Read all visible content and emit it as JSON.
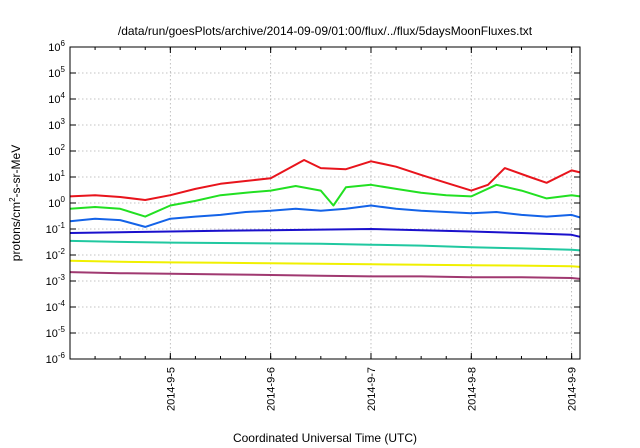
{
  "chart_data": {
    "type": "line",
    "title": "/data/run/goesPlots/archive/2014-09-09/01:00/flux/../flux/5daysMoonFluxes.txt",
    "xlabel": "Coordinated Universal Time (UTC)",
    "ylabel_prefix": "protons/cm",
    "ylabel_sup": "2",
    "ylabel_suffix": "-s-sr-MeV",
    "y_scale": "log",
    "xlim": [
      "2014-09-04T00:00",
      "2014-09-09T02:00"
    ],
    "ylim": [
      1e-06,
      1000000.0
    ],
    "grid": true,
    "legend": "none",
    "x_ticks": [
      "2014-9-5",
      "2014-9-6",
      "2014-9-7",
      "2014-9-8",
      "2014-9-9"
    ],
    "y_ticks": [
      {
        "base": "10",
        "exp": "6"
      },
      {
        "base": "10",
        "exp": "5"
      },
      {
        "base": "10",
        "exp": "4"
      },
      {
        "base": "10",
        "exp": "3"
      },
      {
        "base": "10",
        "exp": "2"
      },
      {
        "base": "10",
        "exp": "1"
      },
      {
        "base": "10",
        "exp": "0"
      },
      {
        "base": "10",
        "exp": "-1"
      },
      {
        "base": "10",
        "exp": "-2"
      },
      {
        "base": "10",
        "exp": "-3"
      },
      {
        "base": "10",
        "exp": "-4"
      },
      {
        "base": "10",
        "exp": "-5"
      },
      {
        "base": "10",
        "exp": "-6"
      }
    ],
    "series": [
      {
        "color": "#e8141c",
        "x": [
          "2014-09-04T00:00",
          "2014-09-04T06:00",
          "2014-09-04T12:00",
          "2014-09-04T18:00",
          "2014-09-05T00:00",
          "2014-09-05T06:00",
          "2014-09-05T12:00",
          "2014-09-05T18:00",
          "2014-09-06T00:00",
          "2014-09-06T06:00",
          "2014-09-06T08:00",
          "2014-09-06T12:00",
          "2014-09-06T18:00",
          "2014-09-07T00:00",
          "2014-09-07T06:00",
          "2014-09-07T12:00",
          "2014-09-07T18:00",
          "2014-09-08T00:00",
          "2014-09-08T04:00",
          "2014-09-08T08:00",
          "2014-09-08T14:00",
          "2014-09-08T18:00",
          "2014-09-09T00:00",
          "2014-09-09T02:00"
        ],
        "y": [
          1.8,
          2.0,
          1.7,
          1.3,
          2.0,
          3.5,
          5.5,
          7.0,
          9.0,
          30,
          45,
          22,
          20,
          40,
          25,
          12,
          6,
          3,
          5,
          22,
          10,
          6,
          18,
          15
        ]
      },
      {
        "color": "#22e022",
        "x": [
          "2014-09-04T00:00",
          "2014-09-04T06:00",
          "2014-09-04T12:00",
          "2014-09-04T18:00",
          "2014-09-05T00:00",
          "2014-09-05T06:00",
          "2014-09-05T12:00",
          "2014-09-05T18:00",
          "2014-09-06T00:00",
          "2014-09-06T06:00",
          "2014-09-06T12:00",
          "2014-09-06T15:00",
          "2014-09-06T18:00",
          "2014-09-07T00:00",
          "2014-09-07T06:00",
          "2014-09-07T12:00",
          "2014-09-07T18:00",
          "2014-09-08T00:00",
          "2014-09-08T06:00",
          "2014-09-08T12:00",
          "2014-09-08T18:00",
          "2014-09-09T00:00",
          "2014-09-09T02:00"
        ],
        "y": [
          0.6,
          0.7,
          0.6,
          0.3,
          0.8,
          1.2,
          2.0,
          2.5,
          3.0,
          4.5,
          3.0,
          0.8,
          4.0,
          5.0,
          3.5,
          2.5,
          2.0,
          1.8,
          5.0,
          3.0,
          1.5,
          2.0,
          1.8
        ]
      },
      {
        "color": "#1463e8",
        "x": [
          "2014-09-04T00:00",
          "2014-09-04T06:00",
          "2014-09-04T12:00",
          "2014-09-04T18:00",
          "2014-09-05T00:00",
          "2014-09-05T06:00",
          "2014-09-05T12:00",
          "2014-09-05T18:00",
          "2014-09-06T00:00",
          "2014-09-06T06:00",
          "2014-09-06T12:00",
          "2014-09-06T18:00",
          "2014-09-07T00:00",
          "2014-09-07T06:00",
          "2014-09-07T12:00",
          "2014-09-07T18:00",
          "2014-09-08T00:00",
          "2014-09-08T06:00",
          "2014-09-08T12:00",
          "2014-09-08T18:00",
          "2014-09-09T00:00",
          "2014-09-09T02:00"
        ],
        "y": [
          0.2,
          0.25,
          0.22,
          0.12,
          0.25,
          0.3,
          0.35,
          0.45,
          0.5,
          0.6,
          0.5,
          0.6,
          0.8,
          0.6,
          0.5,
          0.45,
          0.4,
          0.45,
          0.35,
          0.3,
          0.35,
          0.28
        ]
      },
      {
        "color": "#1a10cc",
        "x": [
          "2014-09-04T00:00",
          "2014-09-04T12:00",
          "2014-09-05T00:00",
          "2014-09-05T12:00",
          "2014-09-06T00:00",
          "2014-09-06T12:00",
          "2014-09-07T00:00",
          "2014-09-07T12:00",
          "2014-09-08T00:00",
          "2014-09-08T12:00",
          "2014-09-09T00:00",
          "2014-09-09T02:00"
        ],
        "y": [
          0.07,
          0.075,
          0.08,
          0.085,
          0.09,
          0.095,
          0.1,
          0.09,
          0.08,
          0.07,
          0.06,
          0.05
        ]
      },
      {
        "color": "#20c8a0",
        "x": [
          "2014-09-04T00:00",
          "2014-09-04T12:00",
          "2014-09-05T00:00",
          "2014-09-05T12:00",
          "2014-09-06T00:00",
          "2014-09-06T12:00",
          "2014-09-07T00:00",
          "2014-09-07T12:00",
          "2014-09-08T00:00",
          "2014-09-08T12:00",
          "2014-09-09T00:00",
          "2014-09-09T02:00"
        ],
        "y": [
          0.035,
          0.032,
          0.03,
          0.029,
          0.028,
          0.027,
          0.025,
          0.023,
          0.02,
          0.018,
          0.016,
          0.015
        ]
      },
      {
        "color": "#f0f000",
        "x": [
          "2014-09-04T00:00",
          "2014-09-04T12:00",
          "2014-09-05T00:00",
          "2014-09-05T12:00",
          "2014-09-06T00:00",
          "2014-09-06T12:00",
          "2014-09-07T00:00",
          "2014-09-07T12:00",
          "2014-09-08T00:00",
          "2014-09-08T12:00",
          "2014-09-09T00:00",
          "2014-09-09T02:00"
        ],
        "y": [
          0.006,
          0.0055,
          0.0052,
          0.005,
          0.0048,
          0.0046,
          0.0044,
          0.0042,
          0.004,
          0.0039,
          0.0037,
          0.0035
        ]
      },
      {
        "color": "#a03870",
        "x": [
          "2014-09-04T00:00",
          "2014-09-04T12:00",
          "2014-09-05T00:00",
          "2014-09-05T12:00",
          "2014-09-06T00:00",
          "2014-09-06T12:00",
          "2014-09-07T00:00",
          "2014-09-07T12:00",
          "2014-09-08T00:00",
          "2014-09-08T12:00",
          "2014-09-09T00:00",
          "2014-09-09T02:00"
        ],
        "y": [
          0.0022,
          0.002,
          0.0019,
          0.0018,
          0.0017,
          0.0016,
          0.0015,
          0.0015,
          0.0014,
          0.0014,
          0.0013,
          0.0012
        ]
      }
    ]
  }
}
